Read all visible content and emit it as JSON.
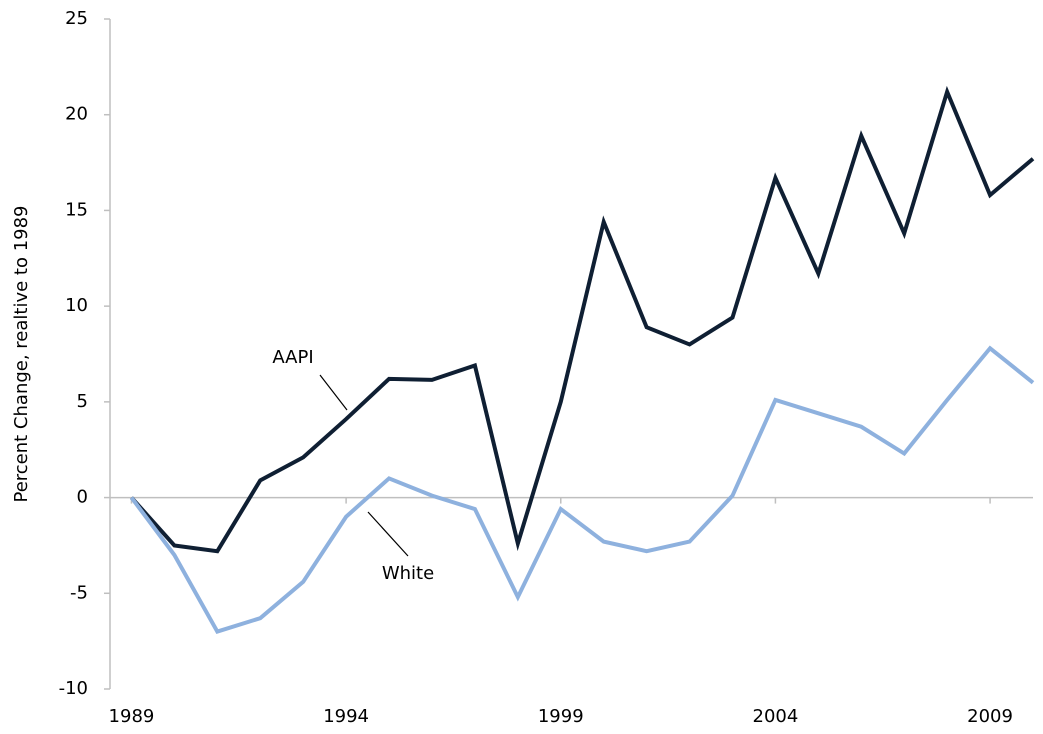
{
  "chart_data": {
    "type": "line",
    "y_label": "Percent Change, realtive to 1989",
    "x": [
      1989,
      1990,
      1991,
      1992,
      1993,
      1994,
      1995,
      1996,
      1997,
      1998,
      1999,
      2000,
      2001,
      2002,
      2003,
      2004,
      2005,
      2006,
      2007,
      2008,
      2009,
      2010
    ],
    "series": [
      {
        "name": "AAPI",
        "color": "#0f1f33",
        "values": [
          0,
          -2.5,
          -2.8,
          0.9,
          2.1,
          4.1,
          6.2,
          6.15,
          6.9,
          -2.4,
          5.0,
          14.4,
          8.9,
          8.0,
          9.4,
          16.7,
          11.7,
          18.9,
          13.8,
          21.2,
          15.8,
          17.7
        ]
      },
      {
        "name": "White",
        "color": "#8eb1de",
        "values": [
          0,
          -3.0,
          -7.0,
          -6.3,
          -4.4,
          -1.0,
          1.0,
          0.1,
          -0.6,
          -5.2,
          -0.6,
          -2.3,
          -2.8,
          -2.3,
          0.1,
          5.1,
          4.4,
          3.7,
          2.3,
          5.1,
          7.8,
          6.0
        ]
      }
    ],
    "xlim": [
      1988.5,
      2010
    ],
    "xticks": [
      1989,
      1994,
      1999,
      2004,
      2009
    ],
    "ylim": [
      -10,
      25
    ],
    "yticks": [
      -10,
      -5,
      0,
      5,
      10,
      15,
      20,
      25
    ],
    "grid": false
  }
}
